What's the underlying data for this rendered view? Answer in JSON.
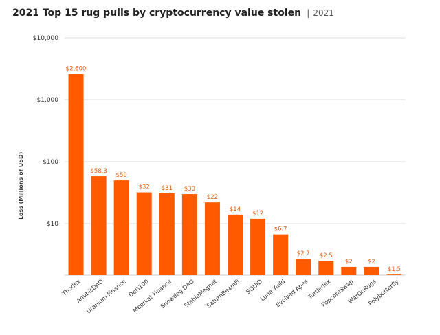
{
  "chart_data": {
    "type": "bar",
    "title": "2021 Top 15 rug pulls by cryptocurrency value stolen",
    "subtitle": "2021",
    "title_separator": "|",
    "xlabel": "",
    "ylabel": "Loss (Millions of USD)",
    "yscale": "log",
    "ylim": [
      1,
      10000
    ],
    "yticks": [
      10,
      100,
      1000,
      10000
    ],
    "ytick_labels": [
      "$10",
      "$100",
      "$1,000",
      "$10,000"
    ],
    "grid": true,
    "legend": "none",
    "bar_color": "#ff5a00",
    "label_color": "#e8590c",
    "categories": [
      "Thodex",
      "AnubisDAO",
      "Uranium Finance",
      "DeFi100",
      "Meerkat Finance",
      "Snowdog DAO",
      "StableMagnet",
      "SaturnBeamFi",
      "SQUID",
      "Luna Yield",
      "Evolved Apes",
      "Turtledex",
      "PopcornSwap",
      "WarOnRugs",
      "Polybutterfly"
    ],
    "values": [
      2600,
      58.3,
      50,
      32,
      31,
      30,
      22,
      14,
      12,
      6.7,
      2.7,
      2.5,
      2,
      2,
      1.5
    ],
    "data_labels": [
      "$2,600",
      "$58.3",
      "$50",
      "$32",
      "$31",
      "$30",
      "$22",
      "$14",
      "$12",
      "$6.7",
      "$2.7",
      "$2.5",
      "$2",
      "$2",
      "$1.5"
    ]
  }
}
